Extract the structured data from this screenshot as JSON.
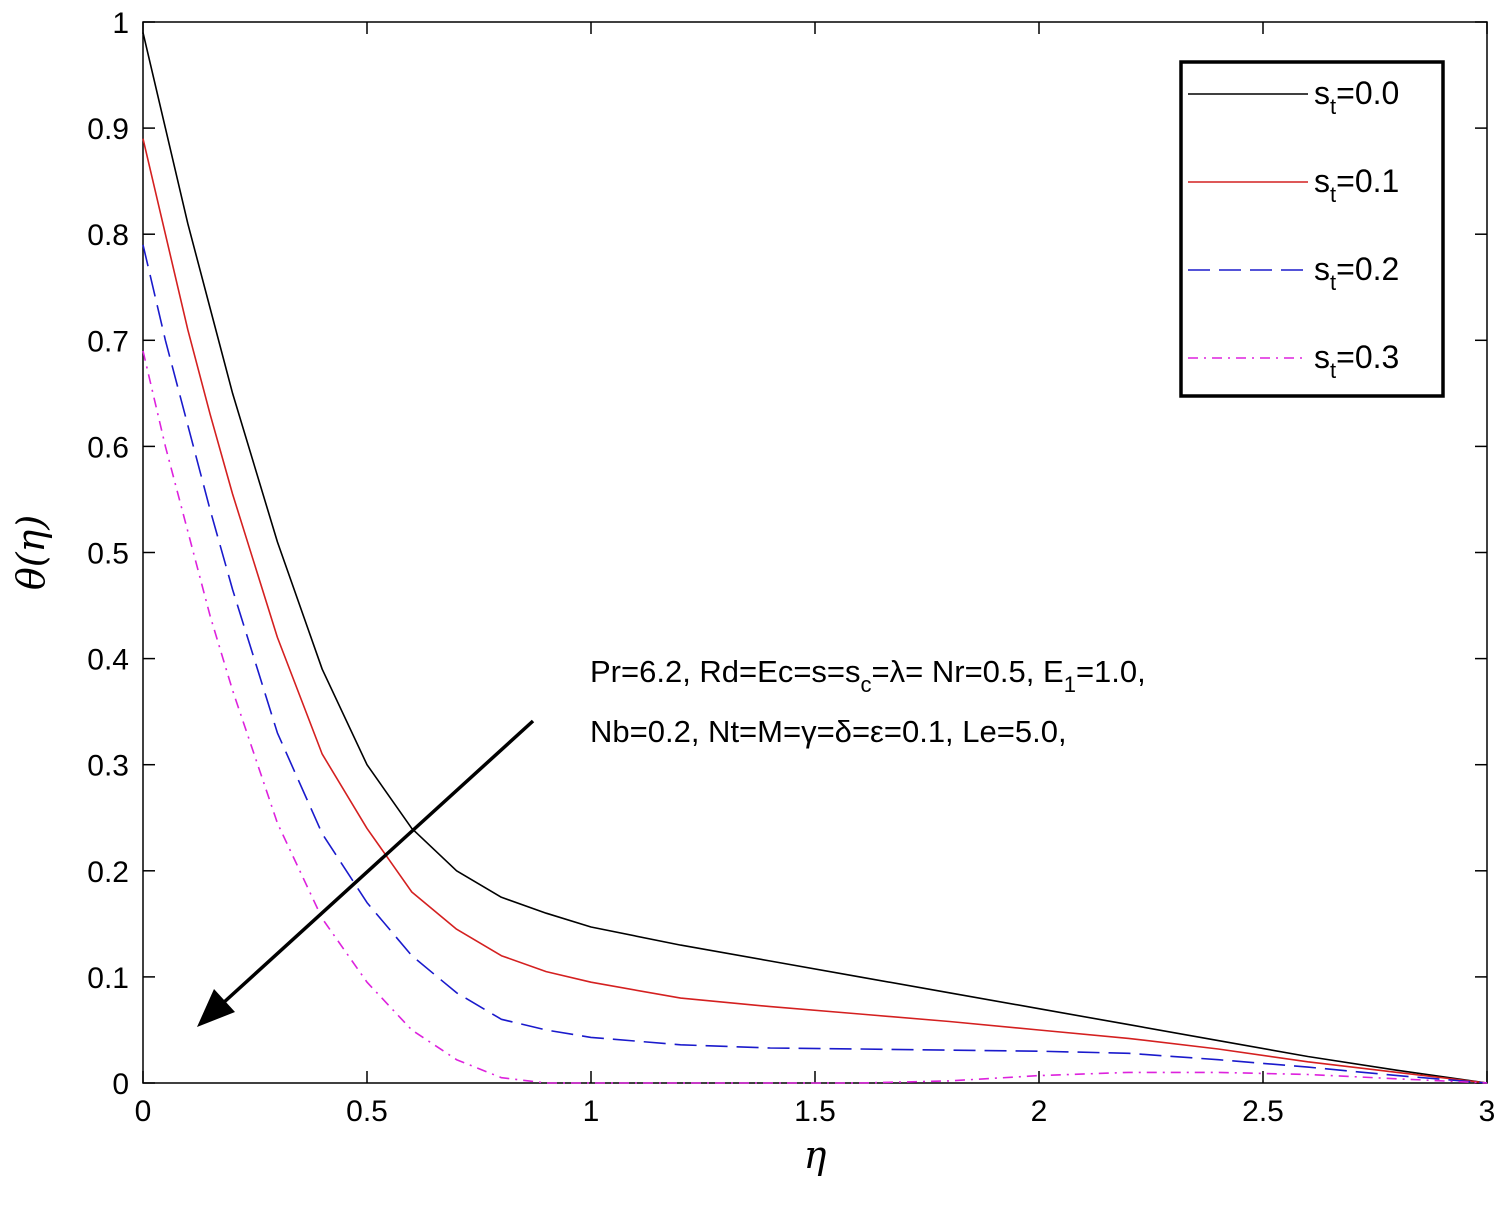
{
  "chart_data": {
    "type": "line",
    "xlabel": "η",
    "ylabel": "θ(η)",
    "xlim": [
      0,
      3
    ],
    "ylim": [
      0,
      1
    ],
    "x_ticks": [
      "0",
      "0.5",
      "1",
      "1.5",
      "2",
      "2.5",
      "3"
    ],
    "y_ticks": [
      "0",
      "0.1",
      "0.2",
      "0.3",
      "0.4",
      "0.5",
      "0.6",
      "0.7",
      "0.8",
      "0.9",
      "1"
    ],
    "grid": false,
    "legend_position": "top-right",
    "series": [
      {
        "name": "s_t=0.0",
        "label_main": "s",
        "label_sub": "t",
        "label_rest": "=0.0",
        "color": "#000000",
        "style": "solid",
        "x": [
          0,
          0.05,
          0.1,
          0.15,
          0.2,
          0.3,
          0.4,
          0.5,
          0.6,
          0.7,
          0.8,
          0.9,
          1.0,
          1.2,
          1.4,
          1.6,
          1.8,
          2.0,
          2.2,
          2.4,
          2.6,
          2.8,
          3.0
        ],
        "y": [
          0.99,
          0.9,
          0.81,
          0.73,
          0.65,
          0.51,
          0.39,
          0.3,
          0.24,
          0.2,
          0.175,
          0.16,
          0.147,
          0.13,
          0.115,
          0.1,
          0.085,
          0.07,
          0.055,
          0.04,
          0.025,
          0.012,
          0.0
        ]
      },
      {
        "name": "s_t=0.1",
        "label_main": "s",
        "label_sub": "t",
        "label_rest": "=0.1",
        "color": "#d42020",
        "style": "solid",
        "x": [
          0,
          0.05,
          0.1,
          0.15,
          0.2,
          0.3,
          0.4,
          0.5,
          0.6,
          0.7,
          0.8,
          0.9,
          1.0,
          1.2,
          1.4,
          1.6,
          1.8,
          2.0,
          2.2,
          2.4,
          2.6,
          2.8,
          3.0
        ],
        "y": [
          0.89,
          0.8,
          0.71,
          0.63,
          0.555,
          0.42,
          0.31,
          0.24,
          0.18,
          0.145,
          0.12,
          0.105,
          0.095,
          0.08,
          0.072,
          0.065,
          0.058,
          0.05,
          0.042,
          0.032,
          0.02,
          0.01,
          0.0
        ]
      },
      {
        "name": "s_t=0.2",
        "label_main": "s",
        "label_sub": "t",
        "label_rest": "=0.2",
        "color": "#1a1acc",
        "style": "dash",
        "x": [
          0,
          0.05,
          0.1,
          0.15,
          0.2,
          0.3,
          0.4,
          0.5,
          0.6,
          0.7,
          0.8,
          0.9,
          1.0,
          1.2,
          1.4,
          1.6,
          1.8,
          2.0,
          2.2,
          2.4,
          2.6,
          2.8,
          3.0
        ],
        "y": [
          0.79,
          0.7,
          0.62,
          0.54,
          0.465,
          0.33,
          0.235,
          0.17,
          0.12,
          0.085,
          0.06,
          0.05,
          0.043,
          0.036,
          0.033,
          0.032,
          0.031,
          0.03,
          0.028,
          0.022,
          0.015,
          0.007,
          0.0
        ]
      },
      {
        "name": "s_t=0.3",
        "label_main": "s",
        "label_sub": "t",
        "label_rest": "=0.3",
        "color": "#dd22dd",
        "style": "dashdot",
        "x": [
          0,
          0.05,
          0.1,
          0.15,
          0.2,
          0.3,
          0.4,
          0.5,
          0.6,
          0.7,
          0.8,
          0.9,
          1.0,
          1.2,
          1.4,
          1.6,
          1.8,
          2.0,
          2.2,
          2.4,
          2.6,
          2.8,
          3.0
        ],
        "y": [
          0.69,
          0.6,
          0.52,
          0.44,
          0.37,
          0.245,
          0.155,
          0.095,
          0.05,
          0.022,
          0.005,
          0.0,
          0.0,
          0.0,
          0.0,
          0.0,
          0.002,
          0.007,
          0.01,
          0.01,
          0.008,
          0.004,
          0.0
        ]
      }
    ],
    "annotation": {
      "line1": "Pr=6.2, Rd=Ec=s=s",
      "line1_sub": "c",
      "line1_rest": "=λ= Nr=0.5, E",
      "line1_sub2": "1",
      "line1_end": "=1.0,",
      "line2": "Nb=0.2, Nt=M=γ=δ=ε=0.1, Le=5.0,"
    }
  }
}
